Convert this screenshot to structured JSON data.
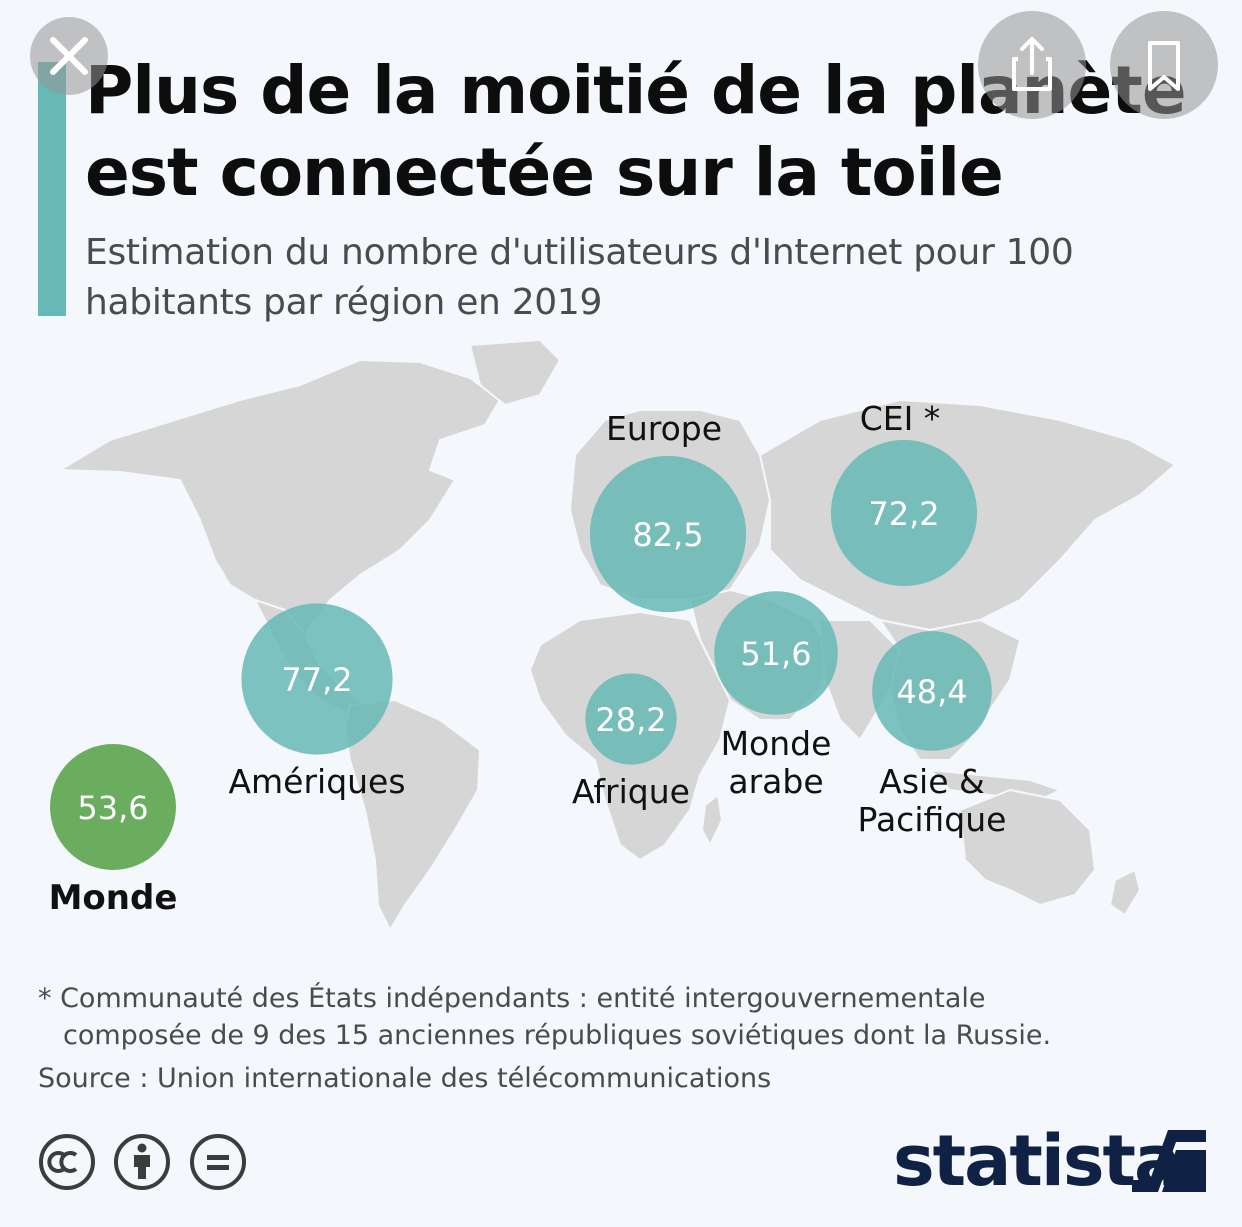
{
  "header": {
    "title": "Plus de la moitié de la planète est connectée sur la toile",
    "subtitle": "Estimation du nombre d'utilisateurs d'Internet pour 100 habitants par région en 2019"
  },
  "chart_data": {
    "type": "bubble-map",
    "title": "Plus de la moitié de la planète est connectée sur la toile",
    "subtitle": "Estimation du nombre d'utilisateurs d'Internet pour 100 habitants par région en 2019",
    "regions": [
      {
        "key": "europe",
        "label": "Europe",
        "display": "82,5",
        "value": 82.5
      },
      {
        "key": "cei",
        "label": "CEI *",
        "display": "72,2",
        "value": 72.2
      },
      {
        "key": "ameriques",
        "label": "Amériques",
        "display": "77,2",
        "value": 77.2
      },
      {
        "key": "monde-arabe",
        "label": "Monde arabe",
        "display": "51,6",
        "value": 51.6
      },
      {
        "key": "asie-pacifique",
        "label": "Asie & Pacifique",
        "display": "48,4",
        "value": 48.4
      },
      {
        "key": "afrique",
        "label": "Afrique",
        "display": "28,2",
        "value": 28.2
      }
    ],
    "world": {
      "key": "monde",
      "label": "Monde",
      "display": "53,6",
      "value": 53.6
    },
    "colors": {
      "region": "#66b9b5",
      "world": "#6aad5e",
      "map": "#d6d6d6"
    }
  },
  "footer": {
    "footnote_line1": "* Communauté des États indépendants : entité intergouvernementale",
    "footnote_line2": "composée de 9 des 15 anciennes républiques soviétiques dont la Russie.",
    "source": "Source : Union internationale des télécommunications",
    "brand": "statista",
    "license_icons": [
      "cc-icon",
      "attribution-icon",
      "no-derivatives-icon"
    ]
  },
  "overlay": {
    "icons": [
      "close-icon",
      "share-icon",
      "bookmark-icon"
    ]
  }
}
